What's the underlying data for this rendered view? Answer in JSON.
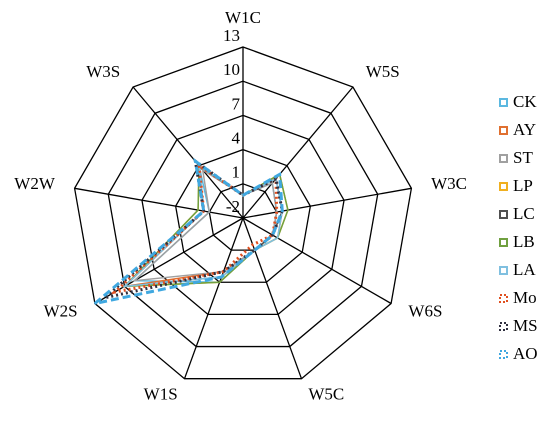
{
  "chart_data": {
    "type": "radar",
    "categories": [
      "W1C",
      "W5S",
      "W3C",
      "W6S",
      "W5C",
      "W1S",
      "W2S",
      "W2W",
      "W3S"
    ],
    "ylim": [
      -2,
      13
    ],
    "yticks": [
      -2,
      1,
      4,
      7,
      10,
      13
    ],
    "series": [
      {
        "name": "CK",
        "color": "#5bb8e0",
        "dash": "solid",
        "values": [
          0,
          2,
          1,
          1,
          1,
          4,
          9,
          1,
          4
        ]
      },
      {
        "name": "AY",
        "color": "#e07030",
        "dash": "solid",
        "values": [
          0,
          2.5,
          1.5,
          1.5,
          1,
          3,
          10,
          1.5,
          4
        ]
      },
      {
        "name": "ST",
        "color": "#a0a0a0",
        "dash": "solid",
        "values": [
          0,
          2,
          1,
          1,
          1,
          3,
          9,
          1,
          3.5
        ]
      },
      {
        "name": "LP",
        "color": "#f0b020",
        "dash": "solid",
        "values": [
          0,
          3,
          2,
          1.5,
          1,
          4,
          10,
          2,
          4
        ]
      },
      {
        "name": "LC",
        "color": "#505050",
        "dash": "solid",
        "values": [
          0,
          2.5,
          1.5,
          1,
          1,
          3.5,
          10,
          1.5,
          4
        ]
      },
      {
        "name": "LB",
        "color": "#70a040",
        "dash": "solid",
        "values": [
          0,
          3,
          2,
          1.5,
          1,
          4,
          10,
          2,
          4
        ]
      },
      {
        "name": "LA",
        "color": "#80c0e0",
        "dash": "solid",
        "values": [
          0,
          2.5,
          1.5,
          1.5,
          1,
          3.5,
          10,
          1.5,
          4
        ]
      },
      {
        "name": "Mo",
        "color": "#e05020",
        "dash": "dotted",
        "values": [
          0,
          2.5,
          1,
          1,
          0.5,
          3,
          11,
          1.5,
          4
        ]
      },
      {
        "name": "MS",
        "color": "#303040",
        "dash": "dotted",
        "values": [
          0,
          2.5,
          1.5,
          1,
          1,
          3,
          12,
          1.5,
          4.5
        ]
      },
      {
        "name": "AO",
        "color": "#40a8e0",
        "dash": "dashed",
        "values": [
          0,
          3,
          1.5,
          1,
          1,
          3.5,
          13,
          1.5,
          4.5
        ]
      }
    ]
  }
}
